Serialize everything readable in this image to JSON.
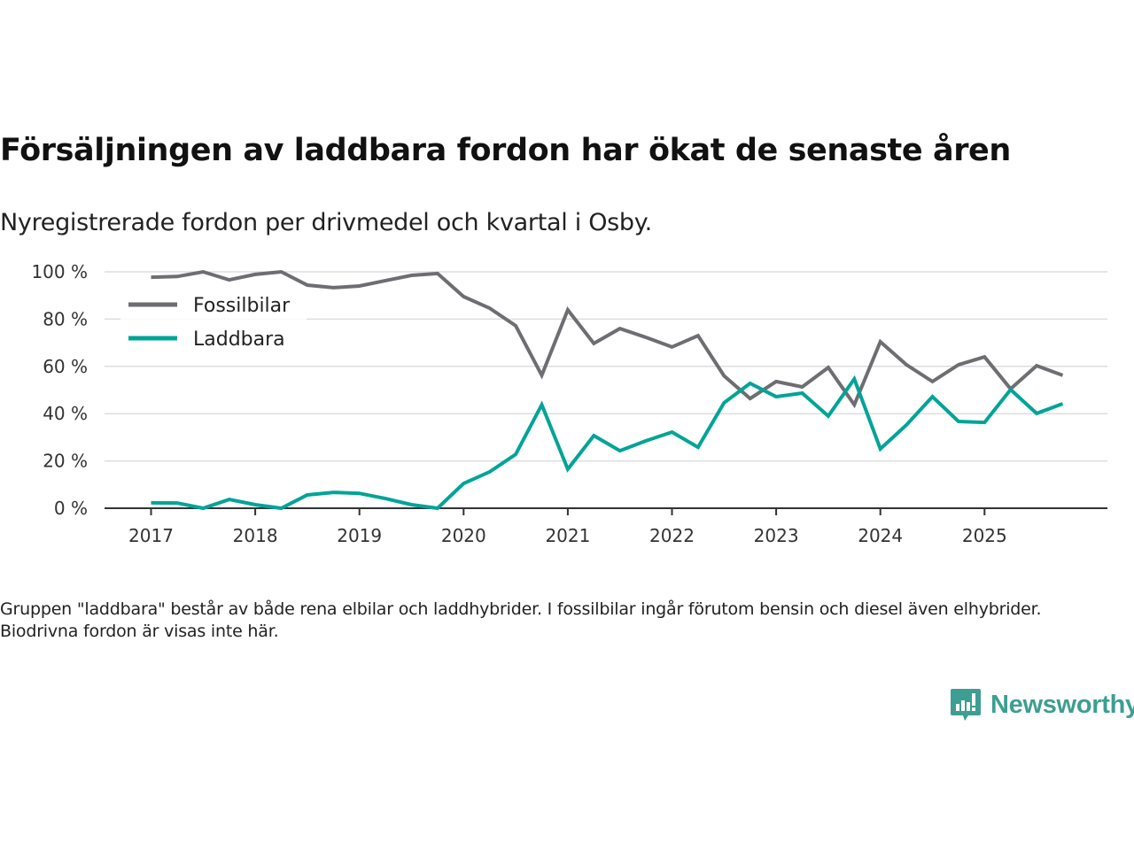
{
  "header": {
    "title": "Försäljningen av laddbara fordon har ökat de senaste åren",
    "subtitle": "Nyregistrerade fordon per drivmedel och kvartal i Osby."
  },
  "footnote": "Gruppen \"laddbara\" består av både rena elbilar och laddhybrider. I fossilbilar ingår förutom bensin och diesel även elhybrider. Biodrivna fordon är visas inte här.",
  "brand": {
    "name": "Newsworthy",
    "icon": "newsworthy-logo-icon",
    "color": "#3d9e91"
  },
  "chart_data": {
    "type": "line",
    "title": "Försäljningen av laddbara fordon har ökat de senaste åren",
    "subtitle": "Nyregistrerade fordon per drivmedel och kvartal i Osby.",
    "xlabel": "",
    "ylabel": "",
    "ylim": [
      0,
      100
    ],
    "yticks": [
      0,
      20,
      40,
      60,
      80,
      100
    ],
    "ytick_labels": [
      "0 %",
      "20 %",
      "40 %",
      "60 %",
      "80 %",
      "100 %"
    ],
    "xticks": [
      "2017",
      "2018",
      "2019",
      "2020",
      "2021",
      "2022",
      "2023",
      "2024",
      "2025"
    ],
    "grid": true,
    "legend_position": "top-left",
    "x": [
      "2017Q1",
      "2017Q2",
      "2017Q3",
      "2017Q4",
      "2018Q1",
      "2018Q2",
      "2018Q3",
      "2018Q4",
      "2019Q1",
      "2019Q2",
      "2019Q3",
      "2019Q4",
      "2020Q1",
      "2020Q2",
      "2020Q3",
      "2020Q4",
      "2021Q1",
      "2021Q2",
      "2021Q3",
      "2021Q4",
      "2022Q1",
      "2022Q2",
      "2022Q3",
      "2022Q4",
      "2023Q1",
      "2023Q2",
      "2023Q3",
      "2023Q4",
      "2024Q1",
      "2024Q2",
      "2024Q3",
      "2024Q4",
      "2025Q1",
      "2025Q2",
      "2025Q3",
      "2025Q4"
    ],
    "series": [
      {
        "name": "Fossilbilar",
        "color": "#6e6d72",
        "values": [
          97.7,
          98.0,
          100,
          96.6,
          98.9,
          100,
          94.4,
          93.3,
          94.0,
          96.3,
          98.5,
          99.3,
          89.5,
          84.6,
          77.2,
          56.2,
          83.9,
          69.7,
          76.0,
          72.3,
          68.2,
          73.0,
          56.0,
          46.4,
          53.6,
          51.3,
          59.5,
          43.8,
          70.4,
          60.7,
          53.6,
          60.7,
          64.0,
          50.5,
          60.3,
          56.2
        ]
      },
      {
        "name": "Laddbara",
        "color": "#00a497",
        "values": [
          2.3,
          2.2,
          0,
          3.7,
          1.5,
          0,
          5.6,
          6.7,
          6.3,
          4.1,
          1.5,
          0,
          10.5,
          15.4,
          22.8,
          43.8,
          16.5,
          30.7,
          24.3,
          28.5,
          32.2,
          25.8,
          44.6,
          52.8,
          47.2,
          48.7,
          39.0,
          54.7,
          25.1,
          35.2,
          47.2,
          36.7,
          36.3,
          50.2,
          40.1,
          44.2
        ]
      }
    ]
  }
}
